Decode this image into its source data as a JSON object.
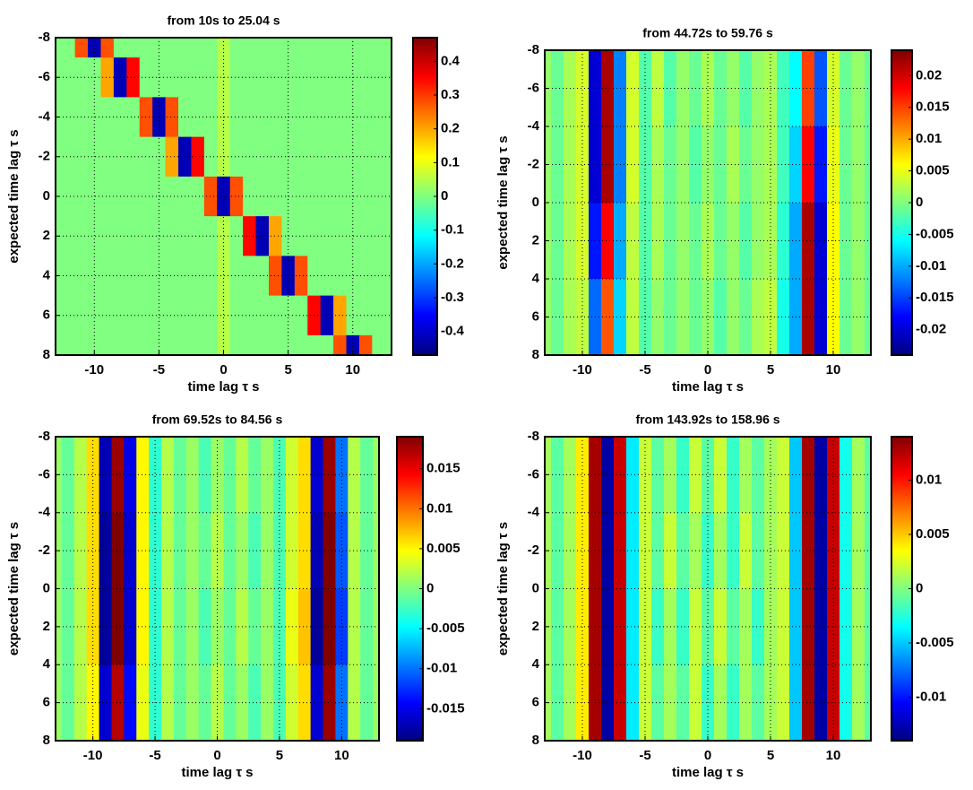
{
  "chart_data": [
    {
      "type": "heatmap",
      "title": "from 10s to 25.04 s",
      "xlabel": "time lag τ s",
      "ylabel": "expected time lag τ s",
      "colormap": "jet",
      "grid": true,
      "y_reversed": true,
      "xlim": [
        -13,
        13
      ],
      "ylim": [
        -8,
        8
      ],
      "xticks": [
        -10,
        -5,
        0,
        5,
        10
      ],
      "yticks": [
        -8,
        -6,
        -4,
        -2,
        0,
        2,
        4,
        6,
        8
      ],
      "clim": [
        -0.47,
        0.47
      ],
      "cticks": [
        -0.4,
        -0.3,
        -0.2,
        -0.1,
        0,
        0.1,
        0.2,
        0.3,
        0.4
      ],
      "x": [
        -13,
        -12,
        -11,
        -10,
        -9,
        -8,
        -7,
        -6,
        -5,
        -4,
        -3,
        -2,
        -1,
        0,
        1,
        2,
        3,
        4,
        5,
        6,
        7,
        8,
        9,
        10,
        11,
        12,
        13
      ],
      "y": [
        -8,
        -6,
        -4,
        -2,
        0,
        2,
        4,
        6,
        8
      ],
      "values": [
        [
          0,
          0,
          0.28,
          -0.42,
          0.28,
          0,
          0,
          0,
          0,
          0,
          0,
          0,
          0,
          0.05,
          0,
          0,
          0,
          0,
          0,
          0,
          0,
          0,
          0,
          0,
          0,
          0,
          0
        ],
        [
          0,
          0,
          0,
          0,
          0.2,
          -0.42,
          0.35,
          0,
          0,
          0,
          0,
          0,
          0,
          0.05,
          0,
          0,
          0,
          0,
          0,
          0,
          0,
          0,
          0,
          0,
          0,
          0,
          0
        ],
        [
          0,
          0,
          0,
          0,
          0,
          0,
          0,
          0.28,
          -0.42,
          0.28,
          0,
          0,
          0,
          0.05,
          0,
          0,
          0,
          0,
          0,
          0,
          0,
          0,
          0,
          0,
          0,
          0,
          0
        ],
        [
          0,
          0,
          0,
          0,
          0,
          0,
          0,
          0,
          0,
          0.2,
          -0.42,
          0.35,
          0,
          0.05,
          0,
          0,
          0,
          0,
          0,
          0,
          0,
          0,
          0,
          0,
          0,
          0,
          0
        ],
        [
          0,
          0,
          0,
          0,
          0,
          0,
          0,
          0,
          0,
          0,
          0,
          0,
          0.28,
          -0.42,
          0.28,
          0,
          0,
          0,
          0,
          0,
          0,
          0,
          0,
          0,
          0,
          0,
          0
        ],
        [
          0,
          0,
          0,
          0,
          0,
          0,
          0,
          0,
          0,
          0,
          0,
          0,
          0,
          0.05,
          0,
          0.35,
          -0.42,
          0.2,
          0,
          0,
          0,
          0,
          0,
          0,
          0,
          0,
          0
        ],
        [
          0,
          0,
          0,
          0,
          0,
          0,
          0,
          0,
          0,
          0,
          0,
          0,
          0,
          0.05,
          0,
          0,
          0,
          0.28,
          -0.42,
          0.28,
          0,
          0,
          0,
          0,
          0,
          0,
          0
        ],
        [
          0,
          0,
          0,
          0,
          0,
          0,
          0,
          0,
          0,
          0,
          0,
          0,
          0,
          0.05,
          0,
          0,
          0,
          0,
          0,
          0,
          0.35,
          -0.42,
          0.2,
          0,
          0,
          0,
          0
        ],
        [
          0,
          0,
          0,
          0,
          0,
          0,
          0,
          0,
          0,
          0,
          0,
          0,
          0,
          0.05,
          0,
          0,
          0,
          0,
          0,
          0,
          0,
          0,
          0.28,
          -0.42,
          0.28,
          0,
          0
        ]
      ]
    },
    {
      "type": "heatmap",
      "title": "from 44.72s to 59.76 s",
      "xlabel": "time lag τ s",
      "ylabel": "expected time lag τ s",
      "colormap": "jet",
      "grid": true,
      "y_reversed": true,
      "xlim": [
        -13,
        13
      ],
      "ylim": [
        -8,
        8
      ],
      "xticks": [
        -10,
        -5,
        0,
        5,
        10
      ],
      "yticks": [
        -8,
        -6,
        -4,
        -2,
        0,
        2,
        4,
        6,
        8
      ],
      "clim": [
        -0.024,
        0.024
      ],
      "cticks": [
        -0.02,
        -0.015,
        -0.01,
        -0.005,
        0,
        0.005,
        0.01,
        0.015,
        0.02
      ],
      "x": [
        -13,
        -12,
        -11,
        -10,
        -9,
        -8,
        -7,
        -6,
        -5,
        -4,
        -3,
        -2,
        -1,
        0,
        1,
        2,
        3,
        4,
        5,
        6,
        7,
        8,
        9,
        10,
        11,
        12,
        13
      ],
      "y": [
        -6,
        -2,
        2,
        6
      ],
      "values": [
        [
          0.001,
          -0.001,
          0.002,
          0.004,
          -0.02,
          0.022,
          -0.012,
          0.004,
          -0.002,
          0.003,
          -0.002,
          0.001,
          -0.001,
          0.002,
          -0.001,
          0.001,
          -0.002,
          0.001,
          0.002,
          -0.003,
          -0.006,
          0.015,
          -0.014,
          0.004,
          -0.001,
          0.001,
          -0.001
        ],
        [
          0.001,
          -0.001,
          0.002,
          0.004,
          -0.02,
          0.022,
          -0.012,
          0.004,
          -0.002,
          0.002,
          -0.001,
          0.001,
          -0.002,
          0.001,
          -0.001,
          0.002,
          -0.001,
          0.001,
          0.002,
          -0.003,
          -0.008,
          0.018,
          -0.017,
          0.005,
          -0.001,
          0.001,
          -0.001
        ],
        [
          0.001,
          -0.001,
          0.002,
          0.004,
          -0.017,
          0.018,
          -0.01,
          0.003,
          -0.002,
          0.002,
          -0.001,
          0.001,
          -0.001,
          0.002,
          -0.001,
          0.001,
          -0.002,
          0.001,
          0.002,
          -0.004,
          -0.01,
          0.022,
          -0.02,
          0.006,
          -0.001,
          0.001,
          -0.001
        ],
        [
          0.001,
          -0.001,
          0.002,
          0.003,
          -0.013,
          0.014,
          -0.008,
          0.003,
          -0.002,
          0.001,
          -0.001,
          0.001,
          -0.001,
          0.001,
          -0.002,
          0.001,
          -0.001,
          0.002,
          0.003,
          -0.005,
          -0.01,
          0.022,
          -0.02,
          0.006,
          -0.001,
          0.001,
          -0.001
        ]
      ]
    },
    {
      "type": "heatmap",
      "title": "from 69.52s to 84.56 s",
      "xlabel": "time lag τ s",
      "ylabel": "expected time lag τ s",
      "colormap": "jet",
      "grid": true,
      "y_reversed": true,
      "xlim": [
        -13,
        13
      ],
      "ylim": [
        -8,
        8
      ],
      "xticks": [
        -10,
        -5,
        0,
        5,
        10
      ],
      "yticks": [
        -8,
        -6,
        -4,
        -2,
        0,
        2,
        4,
        6,
        8
      ],
      "clim": [
        -0.019,
        0.019
      ],
      "cticks": [
        -0.015,
        -0.01,
        -0.005,
        0,
        0.005,
        0.01,
        0.015
      ],
      "x": [
        -13,
        -12,
        -11,
        -10,
        -9,
        -8,
        -7,
        -6,
        -5,
        -4,
        -3,
        -2,
        -1,
        0,
        1,
        2,
        3,
        4,
        5,
        6,
        7,
        8,
        9,
        10,
        11,
        12,
        13
      ],
      "y": [
        -6,
        -2,
        2,
        6
      ],
      "values": [
        [
          0.001,
          -0.001,
          0.002,
          0.006,
          -0.017,
          0.018,
          -0.015,
          0.005,
          -0.003,
          0.002,
          -0.001,
          0.001,
          -0.002,
          0.001,
          -0.001,
          0.002,
          -0.001,
          0.001,
          -0.002,
          0.003,
          0.006,
          -0.016,
          0.018,
          -0.01,
          0.002,
          -0.001,
          0.001
        ],
        [
          0.001,
          -0.001,
          0.002,
          0.006,
          -0.018,
          0.019,
          -0.016,
          0.005,
          -0.003,
          0.002,
          -0.001,
          0.001,
          -0.001,
          0.002,
          -0.001,
          0.001,
          -0.002,
          0.001,
          -0.002,
          0.003,
          0.006,
          -0.017,
          0.019,
          -0.011,
          0.002,
          -0.001,
          0.001
        ],
        [
          0.001,
          -0.001,
          0.002,
          0.006,
          -0.018,
          0.019,
          -0.016,
          0.005,
          -0.003,
          0.002,
          -0.001,
          0.001,
          -0.002,
          0.001,
          -0.001,
          0.002,
          -0.001,
          0.001,
          -0.002,
          0.004,
          0.007,
          -0.018,
          0.019,
          -0.012,
          0.002,
          -0.001,
          0.001
        ],
        [
          0.001,
          -0.001,
          0.002,
          0.005,
          -0.016,
          0.017,
          -0.014,
          0.004,
          -0.003,
          0.002,
          -0.001,
          0.001,
          -0.001,
          0.002,
          -0.001,
          0.001,
          -0.002,
          0.001,
          -0.002,
          0.003,
          0.006,
          -0.016,
          0.018,
          -0.01,
          0.002,
          -0.001,
          0.001
        ]
      ]
    },
    {
      "type": "heatmap",
      "title": "from 143.92s to 158.96 s",
      "xlabel": "time lag τ s",
      "ylabel": "expected time lag τ s",
      "colormap": "jet",
      "grid": true,
      "y_reversed": true,
      "xlim": [
        -13,
        13
      ],
      "ylim": [
        -8,
        8
      ],
      "xticks": [
        -10,
        -5,
        0,
        5,
        10
      ],
      "yticks": [
        -8,
        -6,
        -4,
        -2,
        0,
        2,
        4,
        6,
        8
      ],
      "clim": [
        -0.014,
        0.014
      ],
      "cticks": [
        -0.01,
        -0.005,
        0,
        0.005,
        0.01
      ],
      "x": [
        -13,
        -12,
        -11,
        -10,
        -9,
        -8,
        -7,
        -6,
        -5,
        -4,
        -3,
        -2,
        -1,
        0,
        1,
        2,
        3,
        4,
        5,
        6,
        7,
        8,
        9,
        10,
        11,
        12,
        13
      ],
      "y": [
        -6,
        -2,
        2,
        6
      ],
      "values": [
        [
          0.001,
          -0.001,
          0.001,
          0.004,
          0.013,
          -0.013,
          0.012,
          -0.004,
          0.002,
          -0.001,
          0.001,
          -0.002,
          0.002,
          -0.001,
          0.002,
          -0.002,
          0.001,
          -0.001,
          0.001,
          0.002,
          -0.005,
          0.013,
          -0.013,
          0.012,
          -0.003,
          0.001,
          -0.001
        ],
        [
          0.001,
          -0.001,
          0.001,
          0.004,
          0.013,
          -0.013,
          0.012,
          -0.004,
          0.002,
          -0.001,
          0.002,
          -0.001,
          0.001,
          -0.002,
          0.001,
          -0.002,
          0.002,
          -0.001,
          0.001,
          0.002,
          -0.005,
          0.013,
          -0.013,
          0.012,
          -0.003,
          0.001,
          -0.001
        ],
        [
          0.001,
          -0.001,
          0.001,
          0.004,
          0.013,
          -0.013,
          0.012,
          -0.004,
          0.002,
          -0.002,
          0.001,
          -0.002,
          0.002,
          -0.001,
          0.002,
          -0.001,
          0.001,
          -0.002,
          0.001,
          0.002,
          -0.005,
          0.013,
          -0.013,
          0.012,
          -0.003,
          0.001,
          -0.001
        ],
        [
          0.001,
          -0.001,
          0.001,
          0.004,
          0.013,
          -0.013,
          0.012,
          -0.004,
          0.002,
          -0.001,
          0.001,
          -0.001,
          0.002,
          -0.002,
          0.001,
          -0.002,
          0.001,
          -0.001,
          0.001,
          0.002,
          -0.005,
          0.013,
          -0.013,
          0.012,
          -0.003,
          0.001,
          -0.001
        ]
      ]
    }
  ]
}
